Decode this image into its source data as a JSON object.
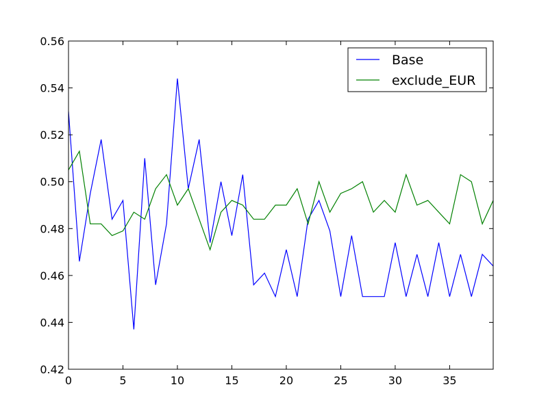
{
  "chart_data": {
    "type": "line",
    "title": "",
    "xlabel": "",
    "ylabel": "",
    "xlim": [
      0,
      39
    ],
    "ylim": [
      0.42,
      0.56
    ],
    "xticks": [
      0,
      5,
      10,
      15,
      20,
      25,
      30,
      35
    ],
    "xtick_labels": [
      "0",
      "5",
      "10",
      "15",
      "20",
      "25",
      "30",
      "35"
    ],
    "yticks": [
      0.42,
      0.44,
      0.46,
      0.48,
      0.5,
      0.52,
      0.54,
      0.56
    ],
    "ytick_labels": [
      "0.42",
      "0.44",
      "0.46",
      "0.48",
      "0.50",
      "0.52",
      "0.54",
      "0.56"
    ],
    "grid": false,
    "legend_position": "top-right",
    "x": [
      0,
      1,
      2,
      3,
      4,
      5,
      6,
      7,
      8,
      9,
      10,
      11,
      12,
      13,
      14,
      15,
      16,
      17,
      18,
      19,
      20,
      21,
      22,
      23,
      24,
      25,
      26,
      27,
      28,
      29,
      30,
      31,
      32,
      33,
      34,
      35,
      36,
      37,
      38,
      39
    ],
    "series": [
      {
        "name": "Base",
        "color": "#0000ff",
        "values": [
          0.53,
          0.466,
          0.495,
          0.518,
          0.484,
          0.492,
          0.437,
          0.51,
          0.456,
          0.482,
          0.544,
          0.497,
          0.518,
          0.474,
          0.5,
          0.477,
          0.503,
          0.456,
          0.461,
          0.451,
          0.471,
          0.451,
          0.484,
          0.492,
          0.479,
          0.451,
          0.477,
          0.451,
          0.451,
          0.451,
          0.474,
          0.451,
          0.469,
          0.451,
          0.474,
          0.451,
          0.469,
          0.451,
          0.469,
          0.464
        ]
      },
      {
        "name": "exclude_EUR",
        "color": "#008000",
        "values": [
          0.505,
          0.513,
          0.482,
          0.482,
          0.477,
          0.479,
          0.487,
          0.484,
          0.497,
          0.503,
          0.49,
          0.497,
          0.484,
          0.471,
          0.487,
          0.492,
          0.49,
          0.484,
          0.484,
          0.49,
          0.49,
          0.497,
          0.482,
          0.5,
          0.487,
          0.495,
          0.497,
          0.5,
          0.487,
          0.492,
          0.487,
          0.503,
          0.49,
          0.492,
          0.487,
          0.482,
          0.503,
          0.5,
          0.482,
          0.492
        ]
      }
    ]
  }
}
